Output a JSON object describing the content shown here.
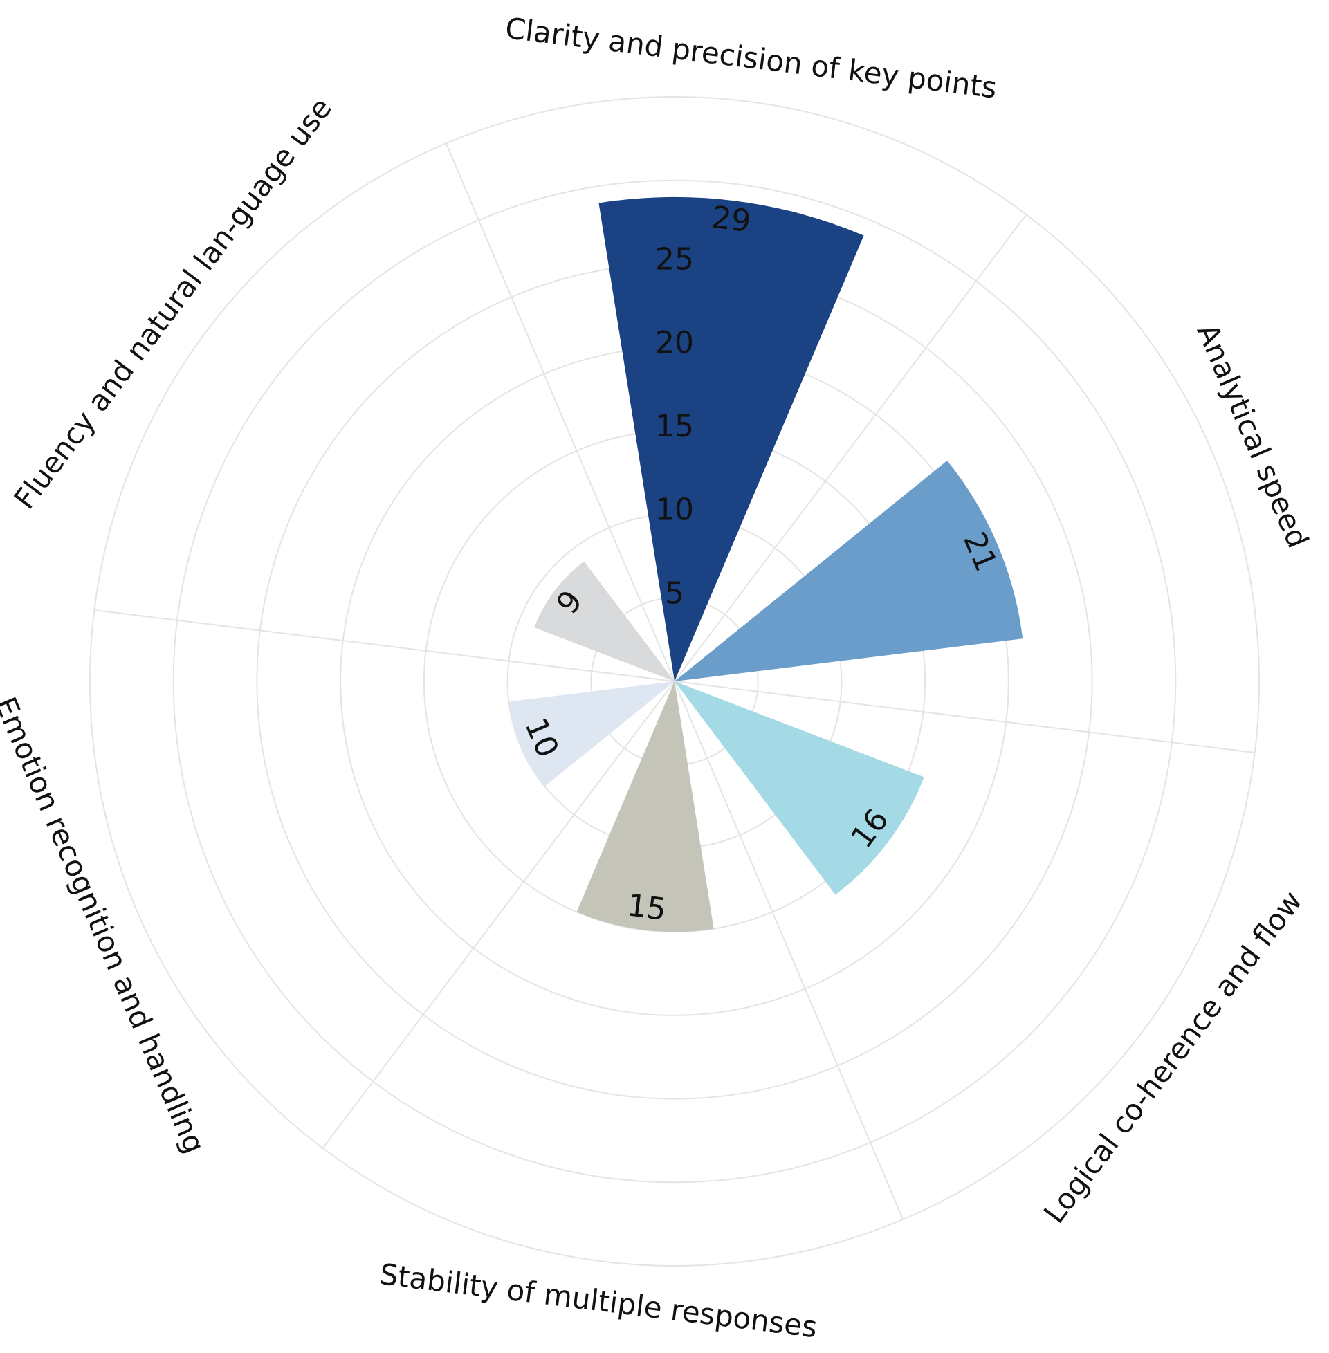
{
  "chart_data": {
    "type": "polar-bar",
    "title": "",
    "rmax": 35,
    "ticks": [
      5,
      10,
      15,
      20,
      25
    ],
    "categories": [
      "Clarity and precision of key points",
      "Analytical speed",
      "Logical co-herence and flow",
      "Stability of multiple responses",
      "Emotion recognition and handling",
      "Fluency and natural lan-guage use"
    ],
    "values": [
      29,
      21,
      16,
      15,
      10,
      9
    ],
    "colors": [
      "#1b4282",
      "#6b9dcb",
      "#a3dae6",
      "#c4c4b9",
      "#dee6f2",
      "#d9dadb"
    ]
  }
}
